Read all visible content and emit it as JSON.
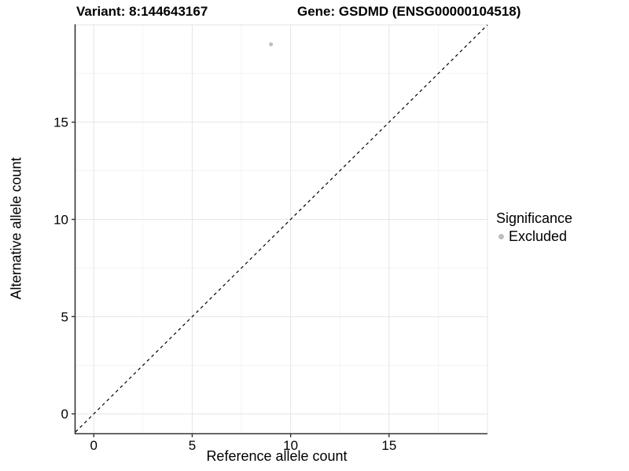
{
  "chart_data": {
    "type": "scatter",
    "title_left": "Variant: 8:144643167",
    "title_right": "Gene: GSDMD (ENSG00000104518)",
    "xlabel": "Reference allele count",
    "ylabel": "Alternative allele count",
    "xlim": [
      -0.93,
      20.0
    ],
    "ylim": [
      -1.0,
      20.03
    ],
    "xticks": [
      0,
      5,
      10,
      15
    ],
    "yticks": [
      0,
      5,
      10,
      15
    ],
    "grid_major_x": [
      0,
      5,
      10,
      15,
      20
    ],
    "grid_major_y": [
      0,
      5,
      10,
      15,
      20
    ],
    "grid_minor_x": [
      2.5,
      7.5,
      12.5,
      17.5
    ],
    "grid_minor_y": [
      2.5,
      7.5,
      12.5,
      17.5
    ],
    "grid": true,
    "legend_position": "right",
    "abline": {
      "slope": 1,
      "intercept": 0,
      "linetype": "dashed",
      "color": "#000000"
    },
    "series": [
      {
        "name": "Excluded",
        "color": "#bebebe",
        "points": [
          {
            "x": 9,
            "y": 19
          }
        ]
      }
    ],
    "legend": {
      "title": "Significance",
      "items": [
        {
          "label": "Excluded",
          "color": "#bebebe"
        }
      ]
    },
    "colors": {
      "background": "#ffffff",
      "grid_major": "#e5e5e5",
      "grid_minor": "#f2f2f2",
      "axis_line": "#333333",
      "tick_mark": "#333333",
      "text": "#000000",
      "point": "#bebebe",
      "identity_line": "#000000"
    }
  }
}
